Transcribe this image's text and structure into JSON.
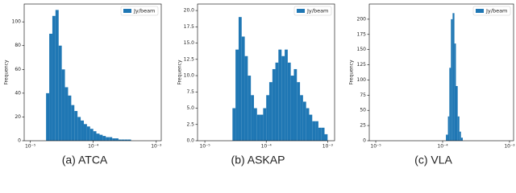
{
  "chart_data": [
    {
      "type": "histogram",
      "caption": "(a) ATCA",
      "y_label": "Frequency",
      "label": "Jy/beam",
      "legend": "upper right",
      "color": "#1f77b4",
      "log_x": true,
      "xlim": [
        8e-06,
        0.0012
      ],
      "ylim": [
        0,
        115
      ],
      "xticks": [
        {
          "value": 1e-05,
          "label": "10⁻⁵"
        },
        {
          "value": 0.0001,
          "label": "10⁻⁴"
        },
        {
          "value": 0.001,
          "label": "10⁻³"
        }
      ],
      "yticks": [
        0,
        20,
        40,
        60,
        80,
        100
      ],
      "bins": [
        1.78e-05,
        2e-05,
        2.24e-05,
        2.51e-05,
        2.82e-05,
        3.16e-05,
        3.55e-05,
        3.98e-05,
        4.47e-05,
        5.01e-05,
        5.62e-05,
        6.31e-05,
        7.08e-05,
        7.94e-05,
        8.91e-05,
        0.0001,
        0.000112,
        0.000126,
        0.000141,
        0.000158,
        0.000178,
        0.0002,
        0.000224,
        0.000251,
        0.000282,
        0.000316,
        0.000355,
        0.000398
      ],
      "values": [
        40,
        90,
        105,
        110,
        80,
        60,
        45,
        38,
        30,
        25,
        20,
        17,
        14,
        12,
        10,
        8,
        6,
        5,
        4,
        3,
        3,
        2,
        2,
        1,
        1,
        1,
        1
      ]
    },
    {
      "type": "histogram",
      "caption": "(b) ASKAP",
      "y_label": "Frequency",
      "label": "Jy/beam",
      "legend": "upper right",
      "color": "#1f77b4",
      "log_x": true,
      "xlim": [
        7.6e-06,
        0.0013
      ],
      "ylim": [
        0,
        21
      ],
      "xticks": [
        {
          "value": 1e-05,
          "label": "10⁻⁵"
        },
        {
          "value": 0.0001,
          "label": "10⁻⁴"
        },
        {
          "value": 0.001,
          "label": "10⁻³"
        }
      ],
      "yticks": [
        {
          "value": 0,
          "label": "0.0"
        },
        2.5,
        {
          "value": 5,
          "label": "5.0"
        },
        7.5,
        {
          "value": 10,
          "label": "10.0"
        },
        12.5,
        {
          "value": 15,
          "label": "15.0"
        },
        17.5,
        {
          "value": 20,
          "label": "20.0"
        }
      ],
      "bins": [
        2.82e-05,
        3.16e-05,
        3.55e-05,
        3.98e-05,
        4.47e-05,
        5.01e-05,
        5.62e-05,
        6.31e-05,
        7.08e-05,
        7.94e-05,
        8.91e-05,
        0.0001,
        0.000112,
        0.000126,
        0.000141,
        0.000158,
        0.000178,
        0.0002,
        0.000224,
        0.000251,
        0.000282,
        0.000316,
        0.000355,
        0.000398,
        0.000447,
        0.000501,
        0.000562,
        0.000631,
        0.000708,
        0.000794,
        0.000891,
        0.001
      ],
      "values": [
        5,
        14,
        19,
        16,
        13,
        10,
        7,
        5,
        4,
        4,
        5,
        7,
        9,
        11,
        12,
        14,
        13,
        14,
        12,
        10,
        11,
        9,
        7,
        6,
        5,
        4,
        3,
        3,
        2,
        2,
        1
      ]
    },
    {
      "type": "histogram",
      "caption": "(c) VLA",
      "y_label": "Frequency",
      "label": "Jy/beam",
      "legend": "upper right",
      "color": "#1f77b4",
      "log_x": true,
      "xlim": [
        8e-06,
        0.00115
      ],
      "ylim": [
        0,
        225
      ],
      "xticks": [
        {
          "value": 1e-05,
          "label": "10⁻⁵"
        },
        {
          "value": 0.0001,
          "label": "10⁻⁴"
        },
        {
          "value": 0.001,
          "label": "10⁻³"
        }
      ],
      "yticks": [
        0,
        25,
        50,
        75,
        100,
        125,
        150,
        175,
        200
      ],
      "bins": [
        0.000112,
        0.00012,
        0.000126,
        0.000133,
        0.000141,
        0.00015,
        0.000158,
        0.000168,
        0.000178,
        0.000188,
        0.0002
      ],
      "values": [
        10,
        40,
        120,
        200,
        210,
        160,
        90,
        40,
        15,
        5
      ]
    }
  ]
}
